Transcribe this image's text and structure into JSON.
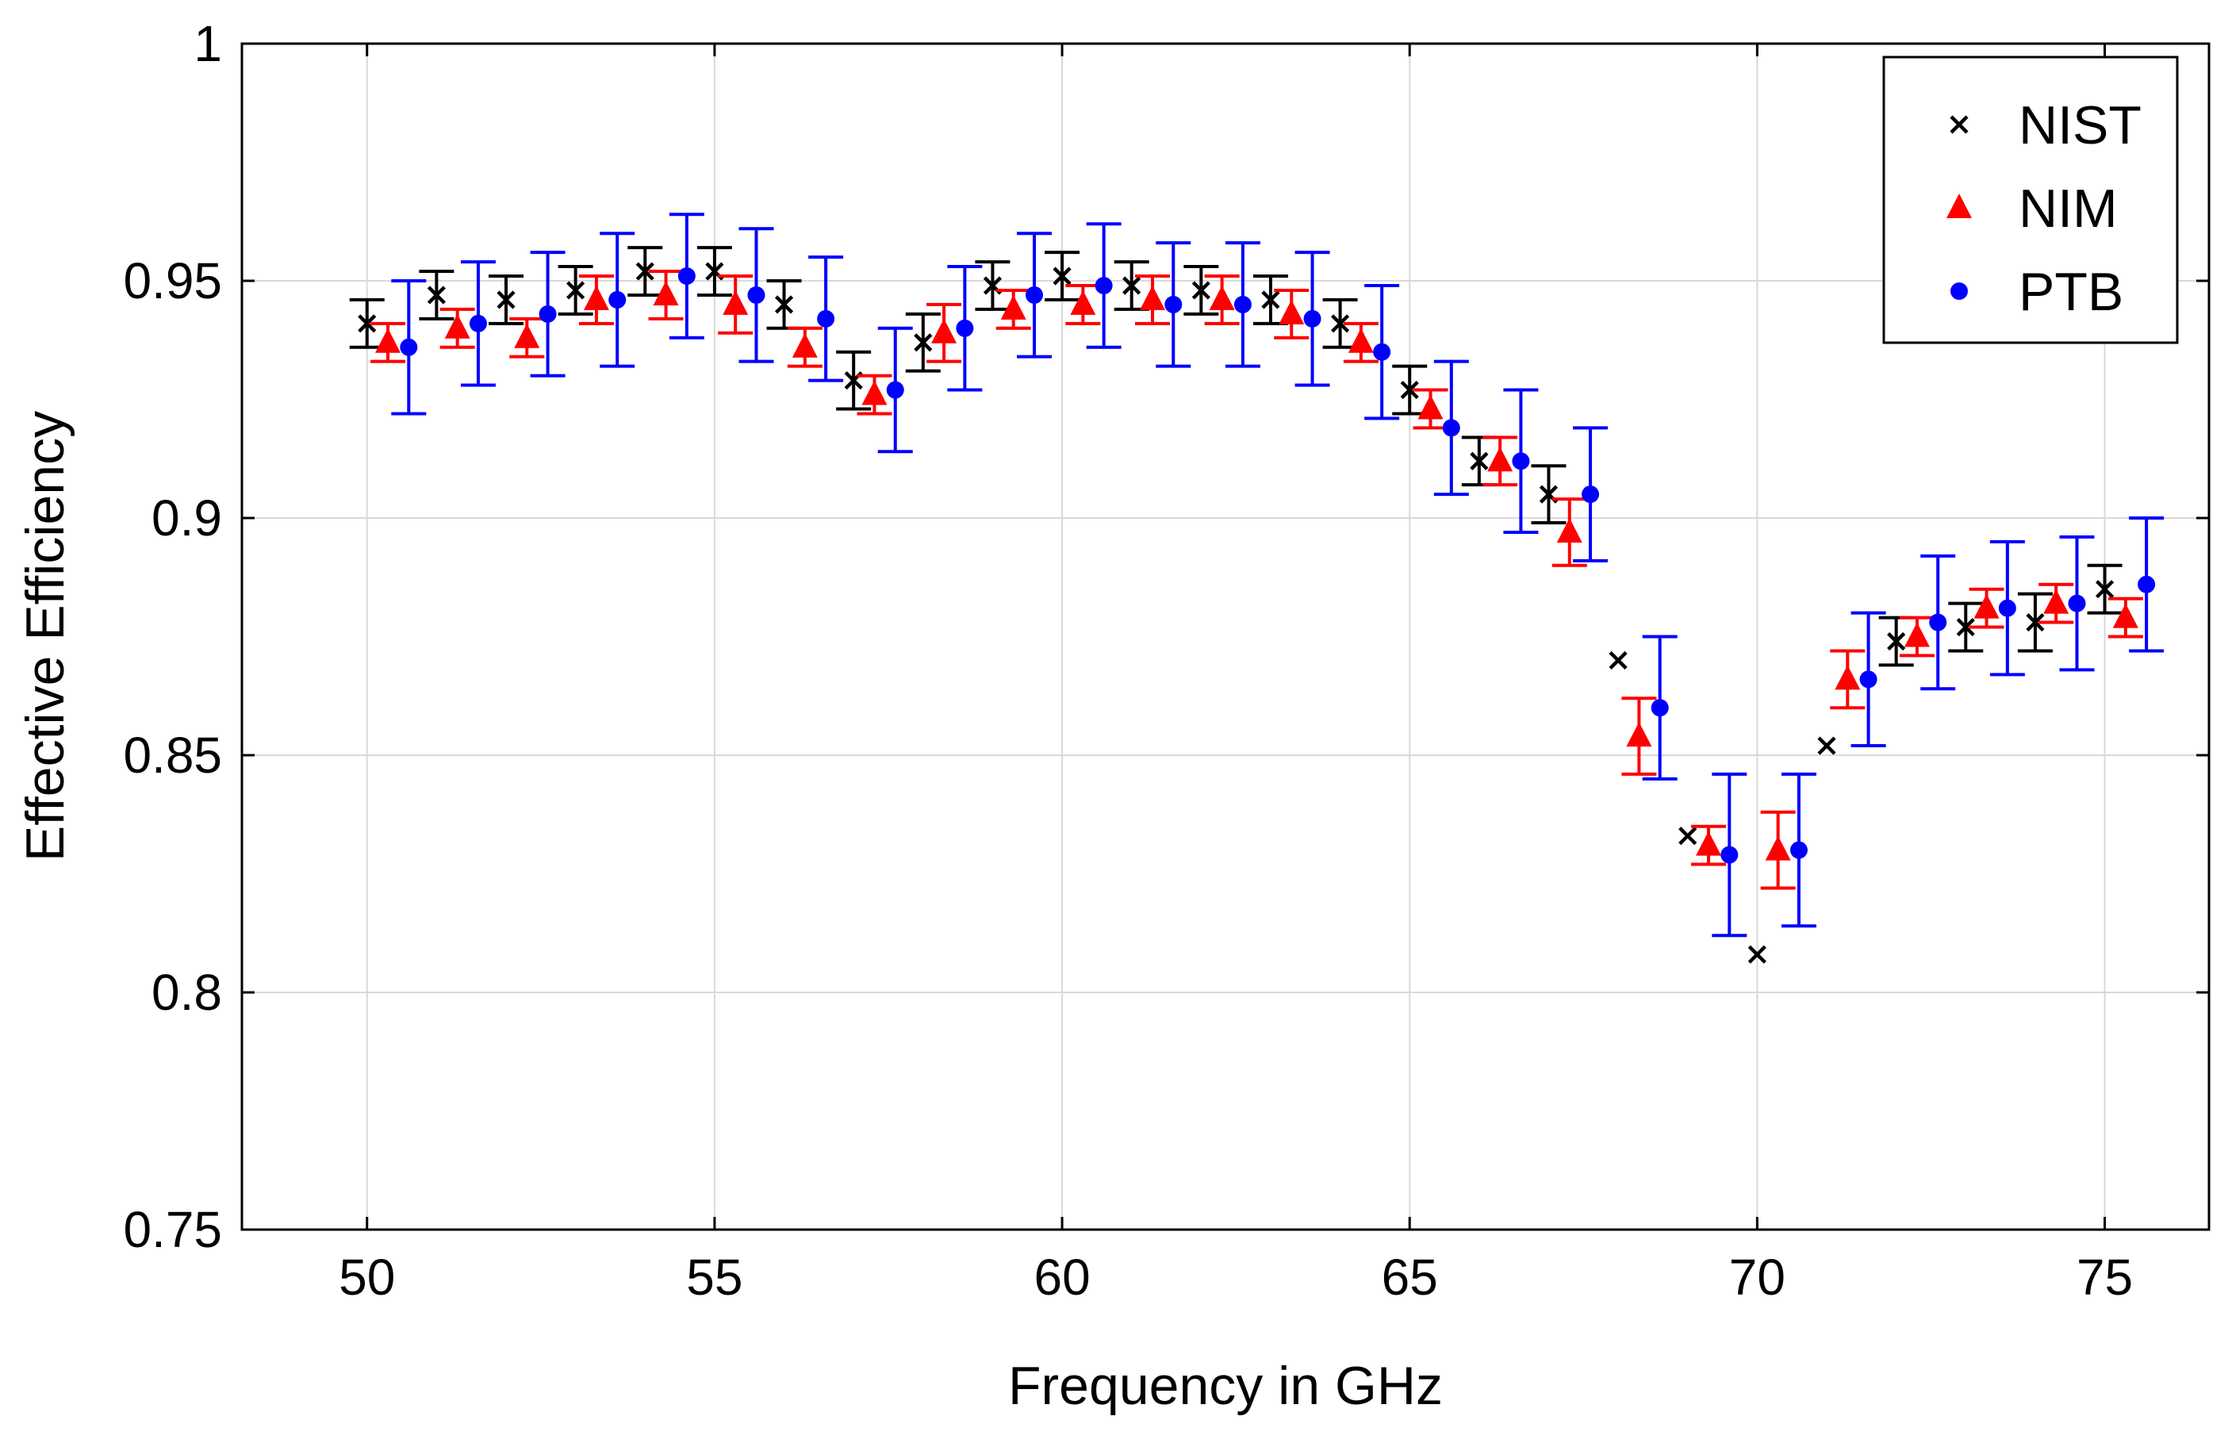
{
  "chart_data": {
    "type": "scatter",
    "title": "",
    "xlabel": "Frequency in GHz",
    "ylabel": "Effective Efficiency",
    "xlim": [
      48.2,
      76.5
    ],
    "ylim": [
      0.75,
      1.0
    ],
    "xticks": [
      50,
      55,
      60,
      65,
      70,
      75
    ],
    "xtick_labels": [
      "50",
      "55",
      "60",
      "65",
      "70",
      "75"
    ],
    "yticks": [
      0.75,
      0.8,
      0.85,
      0.9,
      0.95,
      1.0
    ],
    "ytick_labels": [
      "0.75",
      "0.8",
      "0.85",
      "0.9",
      "0.95",
      "1"
    ],
    "grid": true,
    "legend_position": "top-right",
    "series": [
      {
        "name": "NIST",
        "marker": "x",
        "color": "#000000",
        "x": [
          50,
          51,
          52,
          53,
          54,
          55,
          56,
          57,
          58,
          59,
          60,
          61,
          62,
          63,
          64,
          65,
          66,
          67,
          68,
          69,
          70,
          71,
          72,
          73,
          74,
          75
        ],
        "y": [
          0.941,
          0.947,
          0.946,
          0.948,
          0.952,
          0.952,
          0.945,
          0.929,
          0.937,
          0.949,
          0.951,
          0.949,
          0.948,
          0.946,
          0.941,
          0.927,
          0.912,
          0.905,
          0.87,
          0.833,
          0.808,
          0.852,
          0.874,
          0.877,
          0.878,
          0.885
        ],
        "err": [
          0.005,
          0.005,
          0.005,
          0.005,
          0.005,
          0.005,
          0.005,
          0.006,
          0.006,
          0.005,
          0.005,
          0.005,
          0.005,
          0.005,
          0.005,
          0.005,
          0.005,
          0.006,
          0.0,
          0.0,
          0.0,
          0.0,
          0.005,
          0.005,
          0.006,
          0.005
        ]
      },
      {
        "name": "NIM",
        "marker": "triangle",
        "color": "#ff0000",
        "x": [
          50.3,
          51.3,
          52.3,
          53.3,
          54.3,
          55.3,
          56.3,
          57.3,
          58.3,
          59.3,
          60.3,
          61.3,
          62.3,
          63.3,
          64.3,
          65.3,
          66.3,
          67.3,
          68.3,
          69.3,
          70.3,
          71.3,
          72.3,
          73.3,
          74.3,
          75.3
        ],
        "y": [
          0.937,
          0.94,
          0.938,
          0.946,
          0.947,
          0.945,
          0.936,
          0.926,
          0.939,
          0.944,
          0.945,
          0.946,
          0.946,
          0.943,
          0.937,
          0.923,
          0.912,
          0.897,
          0.854,
          0.831,
          0.83,
          0.866,
          0.875,
          0.881,
          0.882,
          0.879
        ],
        "err": [
          0.004,
          0.004,
          0.004,
          0.005,
          0.005,
          0.006,
          0.004,
          0.004,
          0.006,
          0.004,
          0.004,
          0.005,
          0.005,
          0.005,
          0.004,
          0.004,
          0.005,
          0.007,
          0.008,
          0.004,
          0.008,
          0.006,
          0.004,
          0.004,
          0.004,
          0.004
        ]
      },
      {
        "name": "PTB",
        "marker": "circle",
        "color": "#0000ff",
        "x": [
          50.6,
          51.6,
          52.6,
          53.6,
          54.6,
          55.6,
          56.6,
          57.6,
          58.6,
          59.6,
          60.6,
          61.6,
          62.6,
          63.6,
          64.6,
          65.6,
          66.6,
          67.6,
          68.6,
          69.6,
          70.6,
          71.6,
          72.6,
          73.6,
          74.6,
          75.6
        ],
        "y": [
          0.936,
          0.941,
          0.943,
          0.946,
          0.951,
          0.947,
          0.942,
          0.927,
          0.94,
          0.947,
          0.949,
          0.945,
          0.945,
          0.942,
          0.935,
          0.919,
          0.912,
          0.905,
          0.86,
          0.829,
          0.83,
          0.866,
          0.878,
          0.881,
          0.882,
          0.886
        ],
        "err": [
          0.014,
          0.013,
          0.013,
          0.014,
          0.013,
          0.014,
          0.013,
          0.013,
          0.013,
          0.013,
          0.013,
          0.013,
          0.013,
          0.014,
          0.014,
          0.014,
          0.015,
          0.014,
          0.015,
          0.017,
          0.016,
          0.014,
          0.014,
          0.014,
          0.014,
          0.014
        ]
      }
    ]
  }
}
